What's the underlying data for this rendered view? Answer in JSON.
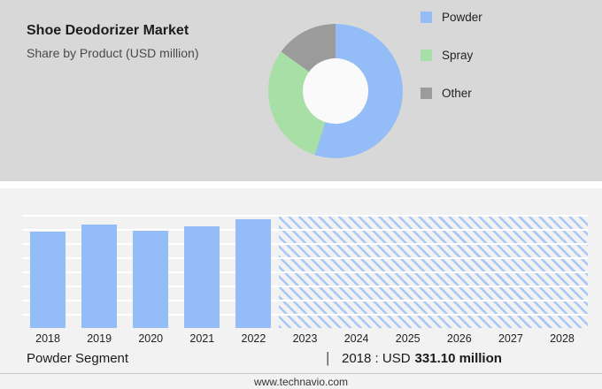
{
  "header": {
    "title": "Shoe Deodorizer Market",
    "subtitle": "Share by Product (USD million)"
  },
  "legend": {
    "items": [
      {
        "label": "Powder",
        "color": "#94bdf8"
      },
      {
        "label": "Spray",
        "color": "#a7dfa7"
      },
      {
        "label": "Other",
        "color": "#9b9b9b"
      }
    ]
  },
  "chart_data": [
    {
      "type": "pie",
      "title": "Shoe Deodorizer Market Share by Product (USD million)",
      "donut": true,
      "legend_position": "right",
      "slices": [
        {
          "label": "Powder",
          "value": 55,
          "color": "#94bdf8"
        },
        {
          "label": "Spray",
          "value": 30,
          "color": "#a7dfa7"
        },
        {
          "label": "Other",
          "value": 15,
          "color": "#9b9b9b"
        }
      ]
    },
    {
      "type": "bar",
      "categories": [
        "2018",
        "2019",
        "2020",
        "2021",
        "2022",
        "2023",
        "2024",
        "2025",
        "2026",
        "2027",
        "2028"
      ],
      "values": [
        331.1,
        356,
        334,
        350,
        374,
        null,
        null,
        null,
        null,
        null,
        null
      ],
      "forecast_categories": [
        "2023",
        "2024",
        "2025",
        "2026",
        "2027",
        "2028"
      ],
      "ylim": [
        0,
        390
      ],
      "bar_color": "#94bdf8",
      "grid": true
    }
  ],
  "caption": {
    "segment": "Powder Segment",
    "separator": "|",
    "prefix": "2018 : USD",
    "value": "331.10 million"
  },
  "footer": {
    "website": "www.technavio.com"
  }
}
